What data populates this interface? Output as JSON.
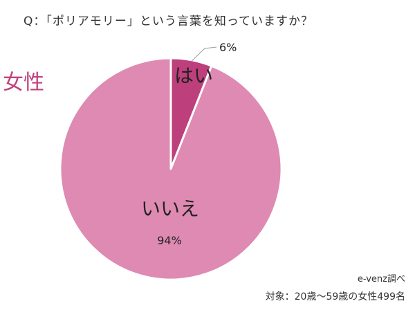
{
  "question": "Q：「ポリアモリー」という言葉を知っていますか？",
  "segment_label": "女性",
  "credit": "e-venz調べ",
  "subject": "対象：20歳～59歳の女性499名",
  "chart_data": {
    "type": "pie",
    "title": "Q：「ポリアモリー」という言葉を知っていますか？",
    "categories": [
      "はい",
      "いいえ"
    ],
    "values": [
      6,
      94
    ],
    "value_labels": [
      "6%",
      "94%"
    ],
    "colors": [
      "#bd3f7b",
      "#de8ab2"
    ],
    "start_angle": "12 o'clock",
    "direction": "clockwise",
    "legend": "none"
  }
}
